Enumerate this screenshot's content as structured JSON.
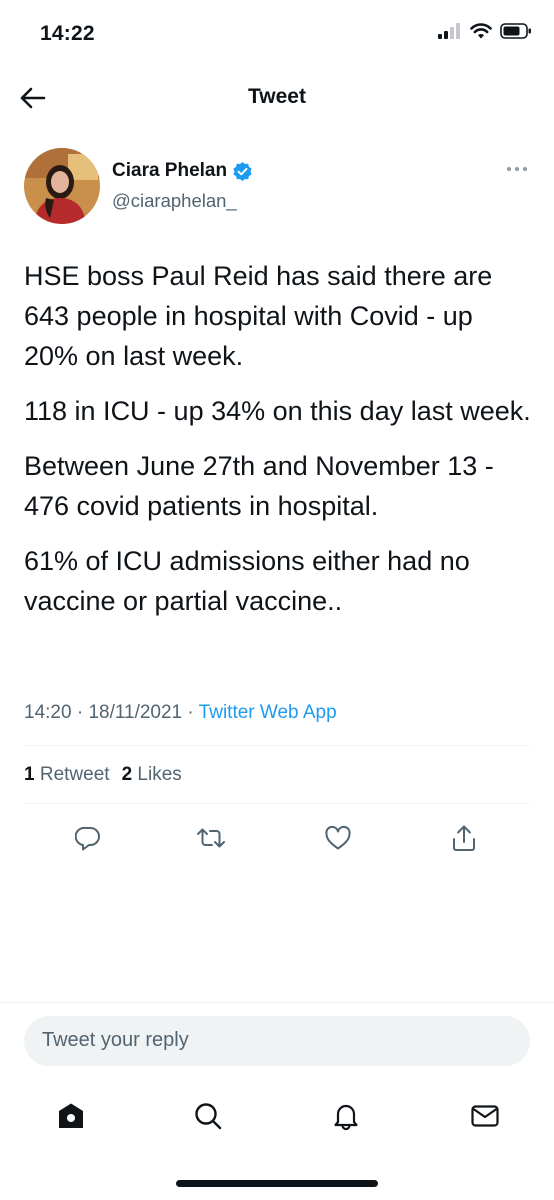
{
  "status_bar": {
    "time": "14:22",
    "icons": [
      "signal-icon",
      "wifi-icon",
      "battery-icon"
    ]
  },
  "header": {
    "title": "Tweet",
    "back_icon": "arrow-left-icon"
  },
  "author": {
    "name": "Ciara Phelan",
    "handle": "@ciaraphelan_",
    "verified": true,
    "verified_color": "#1d9bf0"
  },
  "tweet": {
    "paragraphs": [
      "HSE boss Paul Reid has said there are 643 people in hospital with Covid - up 20% on last week.",
      "118 in ICU - up 34% on this day last week.",
      "Between June 27th and November 13 - 476 covid patients in hospital.",
      "61% of ICU admissions either had no vaccine or partial vaccine.."
    ],
    "time": "14:20",
    "date": "18/11/2021",
    "separator": " · ",
    "source": "Twitter Web App"
  },
  "stats": {
    "retweets_count": "1",
    "retweets_label": "Retweet",
    "likes_count": "2",
    "likes_label": "Likes"
  },
  "actions": [
    "reply-icon",
    "retweet-icon",
    "like-icon",
    "share-icon"
  ],
  "reply": {
    "placeholder": "Tweet your reply"
  },
  "tabbar": [
    "home-icon",
    "search-icon",
    "notifications-icon",
    "messages-icon"
  ],
  "colors": {
    "accent": "#1d9bf0",
    "text": "#0f1419",
    "secondary": "#536471",
    "divider": "#eff3f4"
  }
}
